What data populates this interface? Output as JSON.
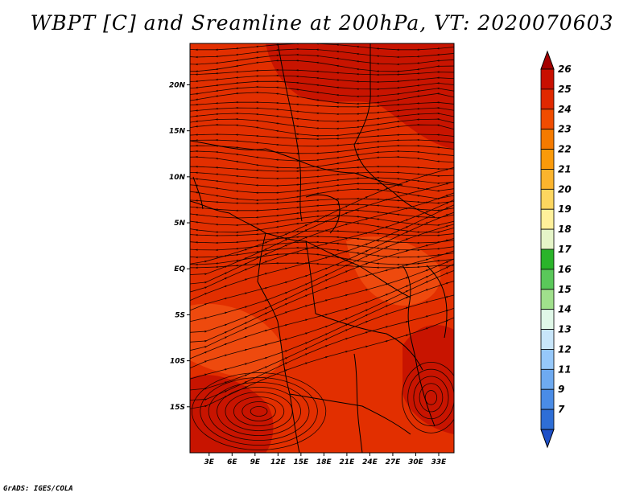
{
  "title": "WBPT [C] and Sreamline at 200hPa, VT: 2020070603",
  "credit": "GrADS: IGES/COLA",
  "map": {
    "lat_labels": [
      "20N",
      "15N",
      "10N",
      "5N",
      "EQ",
      "5S",
      "10S",
      "15S"
    ],
    "lat_values": [
      20,
      15,
      10,
      5,
      0,
      -5,
      -10,
      -15
    ],
    "lon_labels": [
      "3E",
      "6E",
      "9E",
      "12E",
      "15E",
      "18E",
      "21E",
      "24E",
      "27E",
      "30E",
      "33E"
    ],
    "lon_values": [
      3,
      6,
      9,
      12,
      15,
      18,
      21,
      24,
      27,
      30,
      33
    ],
    "lat_range": [
      -20,
      24.5
    ],
    "lon_range": [
      0.5,
      35
    ]
  },
  "colorbar": {
    "labels": [
      "26",
      "25",
      "24",
      "23",
      "22",
      "21",
      "20",
      "19",
      "18",
      "17",
      "16",
      "15",
      "14",
      "13",
      "12",
      "11",
      "9",
      "7"
    ],
    "colors": [
      "#a50000",
      "#c80f00",
      "#e02800",
      "#f04c00",
      "#f57a00",
      "#fa9a0a",
      "#fbb42d",
      "#fdd65f",
      "#fff09a",
      "#e6f5c8",
      "#2ab42a",
      "#5ac85a",
      "#a0e08c",
      "#e0f8e8",
      "#c8e6fa",
      "#96c8fa",
      "#6eaaf0",
      "#4a8ce6",
      "#2e6ed6",
      "#1e50c8"
    ]
  },
  "colors": {
    "field_base": "#e22f00",
    "field_dark": "#c81400",
    "field_light": "#ee4a0e",
    "lines": "#1a0500"
  }
}
